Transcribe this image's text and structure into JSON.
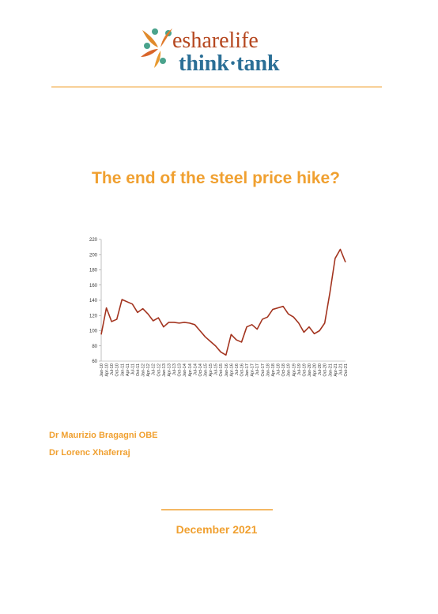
{
  "header": {
    "brand": "esharelife",
    "subbrand": "think·tank"
  },
  "title": "The end of the steel price hike?",
  "chart_data": {
    "type": "line",
    "color": "#a3341f",
    "categories": [
      "Jan-10",
      "Apr-10",
      "Jul-10",
      "Oct-10",
      "Jan-11",
      "Apr-11",
      "Jul-11",
      "Oct-11",
      "Jan-12",
      "Apr-12",
      "Jul-12",
      "Oct-12",
      "Jan-13",
      "Apr-13",
      "Jul-13",
      "Oct-13",
      "Jan-14",
      "Apr-14",
      "Jul-14",
      "Oct-14",
      "Jan-15",
      "Apr-15",
      "Jul-15",
      "Oct-15",
      "Jan-16",
      "Apr-16",
      "Jul-16",
      "Oct-16",
      "Jan-17",
      "Apr-17",
      "Jul-17",
      "Oct-17",
      "Jan-18",
      "Apr-18",
      "Jul-18",
      "Oct-18",
      "Jan-19",
      "Apr-19",
      "Jul-19",
      "Oct-19",
      "Jan-20",
      "Apr-20",
      "Jul-20",
      "Oct-20",
      "Jan-21",
      "Apr-21",
      "Jul-21",
      "Oct-21"
    ],
    "values": [
      95,
      130,
      112,
      115,
      141,
      138,
      135,
      124,
      129,
      122,
      113,
      117,
      105,
      111,
      111,
      110,
      111,
      110,
      108,
      100,
      92,
      86,
      80,
      72,
      68,
      95,
      88,
      85,
      105,
      108,
      102,
      115,
      118,
      128,
      130,
      132,
      122,
      118,
      110,
      98,
      105,
      96,
      100,
      110,
      150,
      195,
      207,
      190
    ],
    "ylim": [
      60,
      220
    ],
    "yticks": [
      60,
      80,
      100,
      120,
      140,
      160,
      180,
      200,
      220
    ]
  },
  "authors": [
    "Dr Maurizio Bragagni OBE",
    "Dr Lorenc Xhaferraj"
  ],
  "date": "December 2021"
}
